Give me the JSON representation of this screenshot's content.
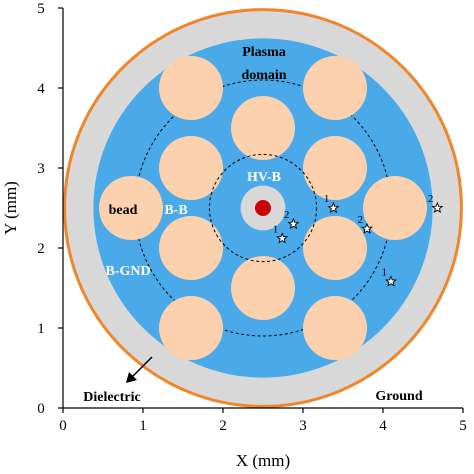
{
  "axes": {
    "xlabel": "X (mm)",
    "ylabel": "Y (mm)",
    "xticks": [
      "0",
      "1",
      "2",
      "3",
      "4",
      "5"
    ],
    "yticks": [
      "0",
      "1",
      "2",
      "3",
      "4",
      "5"
    ],
    "xlim": [
      0,
      5
    ],
    "ylim": [
      0,
      5
    ]
  },
  "regions": {
    "plasma_domain_line1": "Plasma",
    "plasma_domain_line2": "domain",
    "hv_b": "HV-B",
    "b_b": "B-B",
    "b_gnd": "B-GND",
    "bead": "bead",
    "dielectric": "Dielectric",
    "ground": "Ground"
  },
  "colors": {
    "ground_ring": "#f0862a",
    "dielectric": "#d8d8d8",
    "plasma": "#4aa9e8",
    "bead": "#fbd2ad",
    "electrode": "#cc0000"
  },
  "geometry_mm": {
    "center": [
      2.5,
      2.5
    ],
    "ground_radius": 2.5,
    "dielectric_radius": 2.38,
    "plasma_radius": 2.12,
    "bead_radius": 0.4,
    "hv_dielectric_radius": 0.28,
    "electrode_radius": 0.1,
    "inner_dashed_radius": 0.67,
    "outer_dashed_radius": 1.6,
    "beads": [
      [
        1.6,
        4.0
      ],
      [
        3.4,
        4.0
      ],
      [
        2.5,
        3.5
      ],
      [
        1.6,
        3.0
      ],
      [
        3.4,
        3.0
      ],
      [
        0.85,
        2.5
      ],
      [
        4.15,
        2.5
      ],
      [
        1.6,
        2.0
      ],
      [
        3.4,
        2.0
      ],
      [
        2.5,
        1.5
      ],
      [
        1.6,
        1.0
      ],
      [
        3.4,
        1.0
      ]
    ]
  },
  "points": [
    {
      "label": "1",
      "x": 3.38,
      "y": 2.5
    },
    {
      "label": "2",
      "x": 4.68,
      "y": 2.5
    },
    {
      "label": "2",
      "x": 2.88,
      "y": 2.3
    },
    {
      "label": "1",
      "x": 2.74,
      "y": 2.12
    },
    {
      "label": "2",
      "x": 3.8,
      "y": 2.24
    },
    {
      "label": "1",
      "x": 4.1,
      "y": 1.58
    }
  ]
}
